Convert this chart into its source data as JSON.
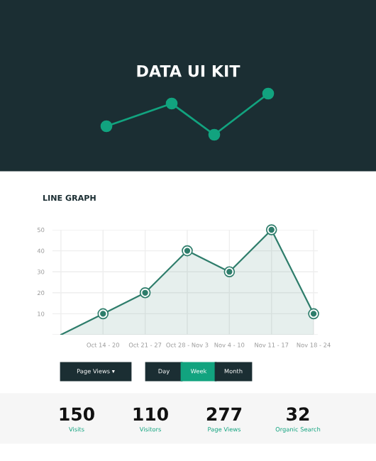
{
  "chart_data": {
    "type": "area",
    "title": "DATA UI KIT",
    "subtitle": "LINE GRAPH",
    "categories": [
      null,
      "Oct 14 - 20",
      "Oct 21 - 27",
      "Oct 28 - Nov 3",
      "Nov 4 - 10",
      "Nov 11 - 17",
      "Nov 18 - 24"
    ],
    "series": [
      {
        "color": "#2e7d6b",
        "values": [
          0,
          10,
          20,
          40,
          30,
          50,
          10
        ]
      }
    ],
    "ylim": [
      0,
      50
    ],
    "yticks": [
      {
        "value": 0,
        "label": null
      },
      10,
      20,
      30,
      40,
      50
    ],
    "grid": true,
    "marker": "circle",
    "legend": false,
    "annotations": [
      "Page Views ▾",
      "Day",
      "Week",
      "Month",
      "150",
      "Visits",
      "110",
      "Visitors",
      "277",
      "Page Views",
      "32",
      "Organic Search"
    ]
  }
}
